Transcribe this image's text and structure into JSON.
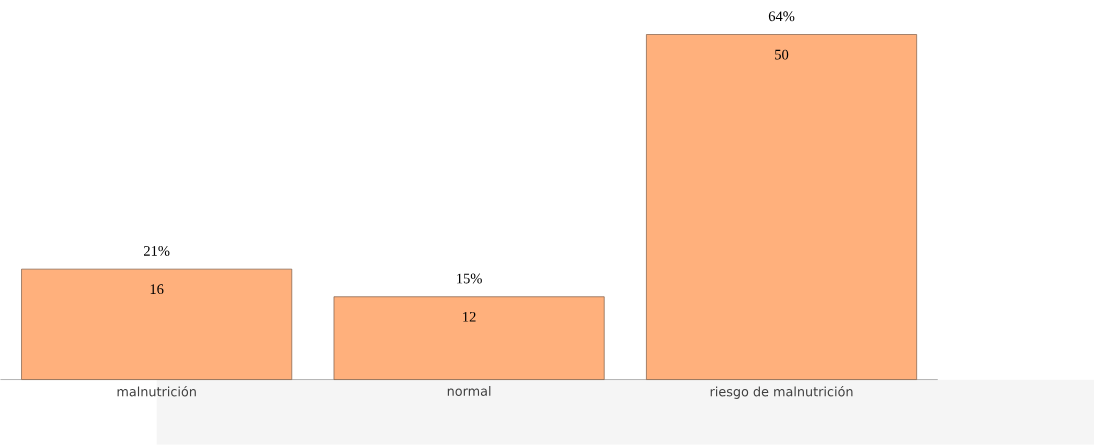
{
  "chart_data": {
    "type": "bar",
    "categories": [
      "malnutrición",
      "normal",
      "riesgo de malnutrición"
    ],
    "values": [
      16,
      12,
      50
    ],
    "color": "#ffb07c",
    "data_labels": true,
    "annotations": [
      {
        "text": "21%",
        "x": "malnutrición",
        "y": 16
      },
      {
        "text": "15%",
        "x": "normal",
        "y": 12
      },
      {
        "text": "64%",
        "x": "riesgo de malnutrición",
        "y": 50
      }
    ]
  }
}
